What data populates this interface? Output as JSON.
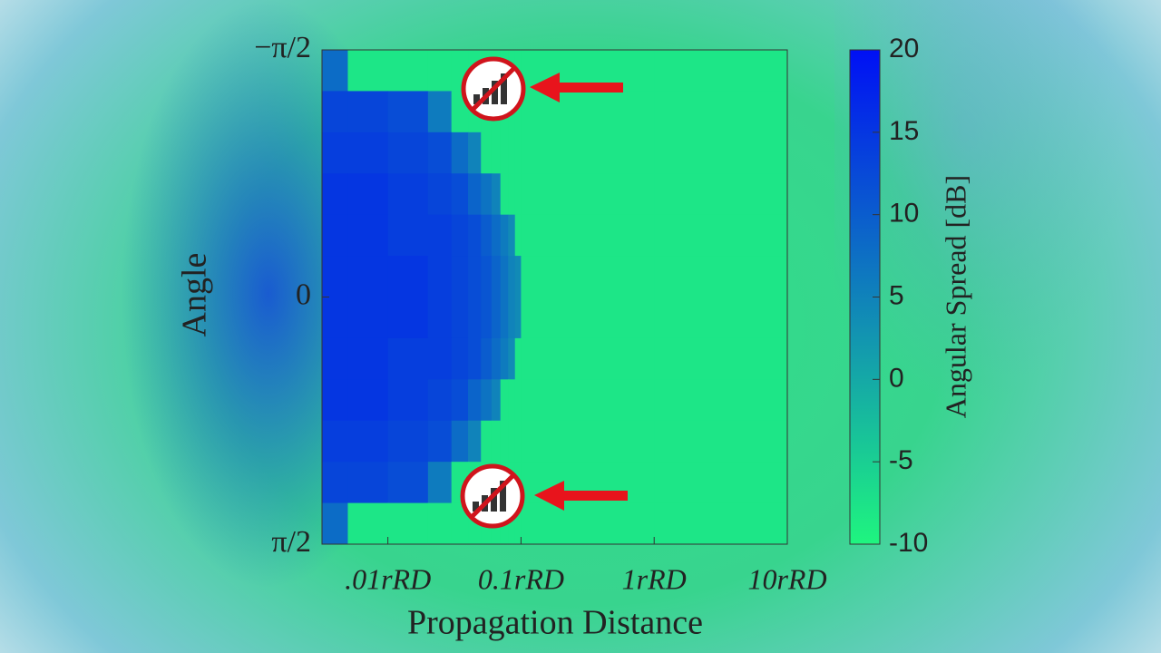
{
  "chart_data": {
    "type": "heatmap",
    "x_label": "Propagation Distance",
    "y_label": "Angle",
    "colorbar_label": "Angular Spread [dB]",
    "x_log": true,
    "xlim": [
      0.0032,
      10
    ],
    "xticks": [
      {
        "value": 0.01,
        "label": ".01rRD"
      },
      {
        "value": 0.1,
        "label": "0.1rRD"
      },
      {
        "value": 1,
        "label": "1rRD"
      },
      {
        "value": 10,
        "label": "10rRD"
      }
    ],
    "ylim": [
      -1.5708,
      1.5708
    ],
    "y_inverted": true,
    "yticks": [
      {
        "value": -1.5708,
        "label": "−π/2"
      },
      0,
      {
        "value": 1.5708,
        "label": "π/2"
      }
    ],
    "x_bins": [
      0.0032,
      0.005,
      0.01,
      0.02,
      0.03,
      0.04,
      0.05,
      0.06,
      0.07,
      0.08,
      0.09,
      0.1,
      0.2,
      1,
      10
    ],
    "y_bins": [
      -1.5708,
      -1.309,
      -1.0472,
      -0.7854,
      -0.5236,
      -0.2618,
      0,
      0.2618,
      0.5236,
      0.7854,
      1.0472,
      1.309,
      1.5708
    ],
    "z": [
      [
        8,
        -8,
        -8,
        -8,
        -8,
        -8,
        -8,
        -8,
        -8,
        -8,
        -8,
        -8,
        -8,
        -8
      ],
      [
        13,
        13,
        12,
        6,
        -8,
        -8,
        -8,
        -8,
        -8,
        -8,
        -8,
        -8,
        -8,
        -8
      ],
      [
        14,
        14,
        13,
        12,
        8,
        5,
        -8,
        -8,
        -8,
        -8,
        -8,
        -8,
        -8,
        -8
      ],
      [
        15,
        15,
        14,
        13,
        12,
        9,
        7,
        5,
        -8,
        -8,
        -8,
        -8,
        -8,
        -8
      ],
      [
        15,
        15,
        14,
        14,
        13,
        12,
        10,
        8,
        6,
        4,
        -8,
        -8,
        -8,
        -8
      ],
      [
        15,
        15,
        15,
        14,
        13,
        12,
        11,
        9,
        7,
        5,
        4,
        -8,
        -8,
        -8
      ],
      [
        15,
        15,
        15,
        14,
        13,
        12,
        11,
        9,
        7,
        5,
        4,
        -8,
        -8,
        -8
      ],
      [
        15,
        15,
        14,
        14,
        13,
        12,
        10,
        8,
        6,
        4,
        -8,
        -8,
        -8,
        -8
      ],
      [
        15,
        15,
        14,
        13,
        12,
        9,
        7,
        5,
        -8,
        -8,
        -8,
        -8,
        -8,
        -8
      ],
      [
        14,
        14,
        13,
        12,
        8,
        5,
        -8,
        -8,
        -8,
        -8,
        -8,
        -8,
        -8,
        -8
      ],
      [
        13,
        13,
        12,
        6,
        -8,
        -8,
        -8,
        -8,
        -8,
        -8,
        -8,
        -8,
        -8,
        -8
      ],
      [
        8,
        -8,
        -8,
        -8,
        -8,
        -8,
        -8,
        -8,
        -8,
        -8,
        -8,
        -8,
        -8,
        -8
      ]
    ],
    "colormap": [
      "#1ff57f",
      "#0010f5"
    ],
    "clim": [
      -10,
      20
    ],
    "cticks": [
      20,
      15,
      10,
      5,
      0,
      -5,
      -10
    ]
  }
}
